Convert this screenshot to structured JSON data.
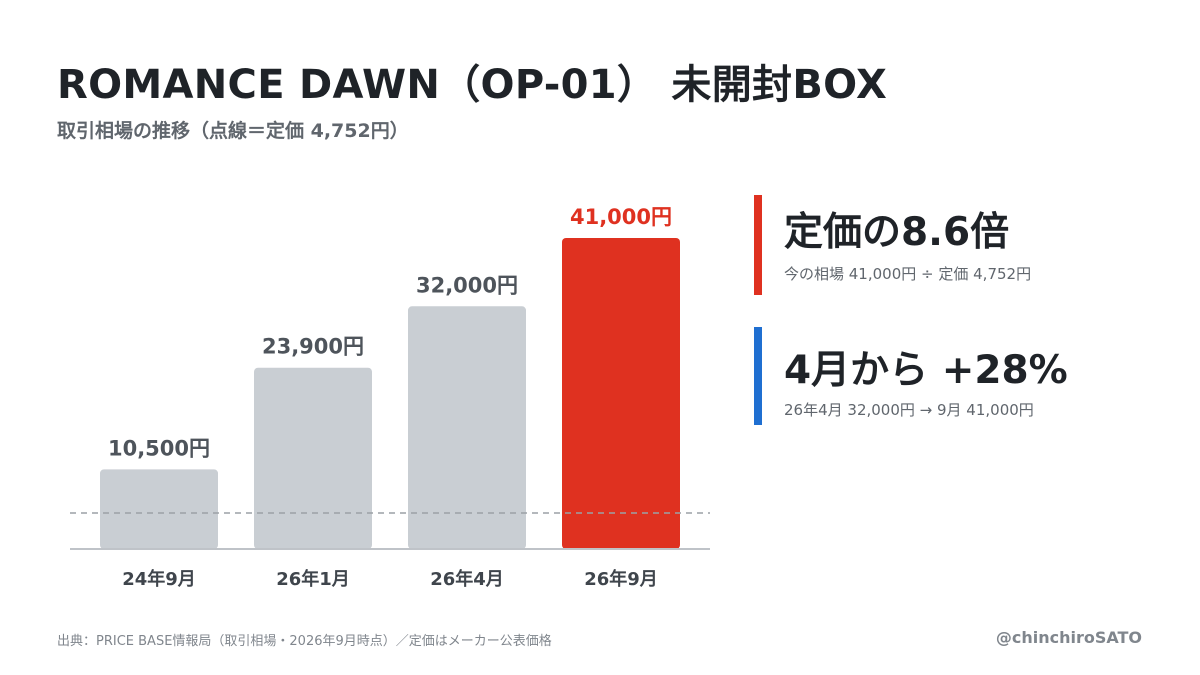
{
  "colors": {
    "bar_default": "#c9ced3",
    "bar_highlight": "#df3120",
    "label_default": "#4e545b",
    "label_highlight": "#df3120",
    "axis": "#bfc3c8",
    "reference_line": "#9ca1a6",
    "callout_red": "#df3120",
    "callout_blue": "#1f6fd1"
  },
  "chart_data": {
    "type": "bar",
    "title": "ROMANCE DAWN（OP-01） 未開封BOX",
    "subtitle": "取引相場の推移（点線＝定価 4,752円）",
    "categories": [
      "24年9月",
      "26年1月",
      "26年4月",
      "26年9月"
    ],
    "values": [
      10500,
      23900,
      32000,
      41000
    ],
    "value_labels": [
      "10,500円",
      "23,900円",
      "32,000円",
      "41,000円"
    ],
    "highlight_index": 3,
    "reference_line": {
      "value": 4752
    },
    "ylim": [
      0,
      41000
    ],
    "xlabel": "",
    "ylabel": "",
    "grid": false
  },
  "callouts": [
    {
      "headline": "定価の8.6倍",
      "detail": "今の相場 41,000円 ÷ 定価 4,752円"
    },
    {
      "headline": "4月から +28%",
      "detail": "26年4月 32,000円 → 9月 41,000円"
    }
  ],
  "footer": {
    "source": "出典：PRICE BASE情報局（取引相場・2026年9月時点）／定価はメーカー公表価格",
    "handle": "@chinchiroSATO"
  }
}
